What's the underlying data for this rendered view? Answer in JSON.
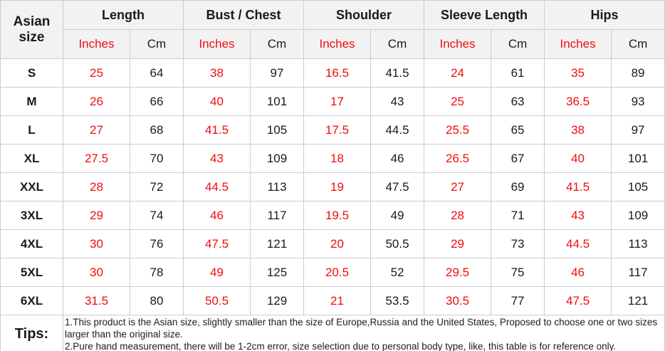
{
  "table": {
    "corner_header": "Asian size",
    "groups": [
      {
        "label": "Length"
      },
      {
        "label": "Bust / Chest"
      },
      {
        "label": "Shoulder"
      },
      {
        "label": "Sleeve Length"
      },
      {
        "label": "Hips"
      }
    ],
    "unit_headers": {
      "inches": "Inches",
      "cm": "Cm"
    },
    "rows": [
      {
        "size": "S",
        "values": [
          25,
          64,
          38,
          97,
          16.5,
          41.5,
          24,
          61,
          35,
          89
        ]
      },
      {
        "size": "M",
        "values": [
          26,
          66,
          40,
          101,
          17,
          43,
          25,
          63,
          36.5,
          93
        ]
      },
      {
        "size": "L",
        "values": [
          27,
          68,
          41.5,
          105,
          17.5,
          44.5,
          25.5,
          65,
          38,
          97
        ]
      },
      {
        "size": "XL",
        "values": [
          27.5,
          70,
          43,
          109,
          18,
          46,
          26.5,
          67,
          40,
          101
        ]
      },
      {
        "size": "XXL",
        "values": [
          28,
          72,
          44.5,
          113,
          19,
          47.5,
          27,
          69,
          41.5,
          105
        ]
      },
      {
        "size": "3XL",
        "values": [
          29,
          74,
          46,
          117,
          19.5,
          49,
          28,
          71,
          43,
          109
        ]
      },
      {
        "size": "4XL",
        "values": [
          30,
          76,
          47.5,
          121,
          20,
          50.5,
          29,
          73,
          44.5,
          113
        ]
      },
      {
        "size": "5XL",
        "values": [
          30,
          78,
          49,
          125,
          20.5,
          52,
          29.5,
          75,
          46,
          117
        ]
      },
      {
        "size": "6XL",
        "values": [
          31.5,
          80,
          50.5,
          129,
          21,
          53.5,
          30.5,
          77,
          47.5,
          121
        ]
      }
    ],
    "tips": {
      "label": "Tips:",
      "lines": [
        "1.This product is the Asian size, slightly smaller than the size of Europe,Russia and the United States, Proposed to choose one or two sizes larger than the original size.",
        "2.Pure hand measurement, there will be 1-2cm error, size selection due to personal body type, like, this table is for reference only."
      ]
    },
    "colors": {
      "accent_red": "#f00c0c",
      "text_black": "#1a1a1a",
      "header_bg": "#f2f2f2",
      "border": "#cccccc"
    }
  }
}
